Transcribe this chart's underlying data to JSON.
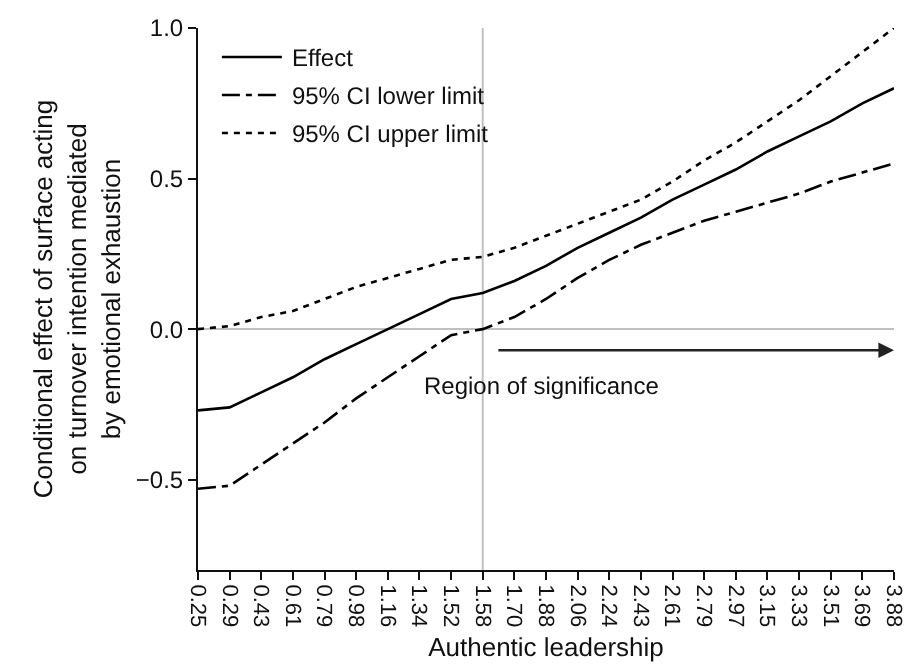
{
  "chart_data": {
    "type": "line",
    "xlabel": "Authentic leadership",
    "ylabel": "Conditional effect of surface acting\non turnover intention mediated\nby emotional exhaustion",
    "categories": [
      "0.25",
      "0.29",
      "0.43",
      "0.61",
      "0.79",
      "0.98",
      "1.16",
      "1.34",
      "1.52",
      "1.58",
      "1.70",
      "1.88",
      "2.06",
      "2.24",
      "2.43",
      "2.61",
      "2.79",
      "2.97",
      "3.15",
      "3.33",
      "3.51",
      "3.69",
      "3.88"
    ],
    "series": [
      {
        "name": "Effect",
        "color": "#000000",
        "line_style": "solid",
        "values": [
          -0.27,
          -0.26,
          -0.21,
          -0.16,
          -0.1,
          -0.05,
          0.0,
          0.05,
          0.1,
          0.12,
          0.16,
          0.21,
          0.27,
          0.32,
          0.37,
          0.43,
          0.48,
          0.53,
          0.59,
          0.64,
          0.69,
          0.75,
          0.8
        ]
      },
      {
        "name": "95% CI lower limit",
        "color": "#000000",
        "line_style": "dashdot",
        "values": [
          -0.53,
          -0.52,
          -0.45,
          -0.38,
          -0.31,
          -0.23,
          -0.16,
          -0.09,
          -0.02,
          0.0,
          0.04,
          0.1,
          0.17,
          0.23,
          0.28,
          0.32,
          0.36,
          0.39,
          0.42,
          0.45,
          0.49,
          0.52,
          0.55
        ]
      },
      {
        "name": "95% CI upper limit",
        "color": "#000000",
        "line_style": "dotted",
        "values": [
          0.0,
          0.01,
          0.04,
          0.06,
          0.1,
          0.14,
          0.17,
          0.2,
          0.23,
          0.24,
          0.27,
          0.31,
          0.35,
          0.39,
          0.43,
          0.49,
          0.56,
          0.62,
          0.69,
          0.76,
          0.84,
          0.92,
          1.0
        ]
      }
    ],
    "ylim": [
      -0.8,
      1.0
    ],
    "yticks": [
      {
        "value": -0.5,
        "label": "−0.5"
      },
      {
        "value": 0,
        "label": "0.0"
      },
      {
        "value": 0.5,
        "label": "0.5"
      },
      {
        "value": 1.0,
        "label": "1.0"
      }
    ],
    "ref_lines": [
      {
        "axis": "y",
        "value": 0,
        "color": "#c0c0c0"
      },
      {
        "axis": "x",
        "value": "1.58",
        "color": "#c0c0c0"
      }
    ],
    "annotations": [
      "Region of significance"
    ],
    "legend": "top left",
    "grid": false,
    "marker": "none"
  }
}
